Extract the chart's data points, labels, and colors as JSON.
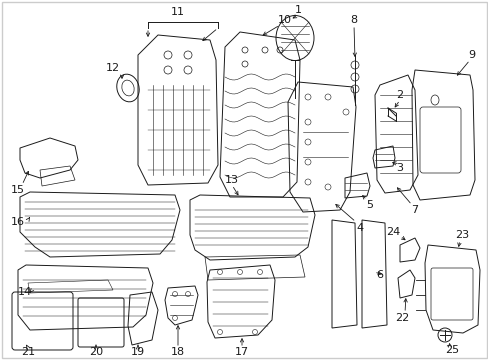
{
  "bg_color": "#ffffff",
  "line_color": "#1a1a1a",
  "fig_width": 4.89,
  "fig_height": 3.6,
  "dpi": 100,
  "font_size": 8.0,
  "lw": 0.7,
  "border_color": "#aaaaaa"
}
